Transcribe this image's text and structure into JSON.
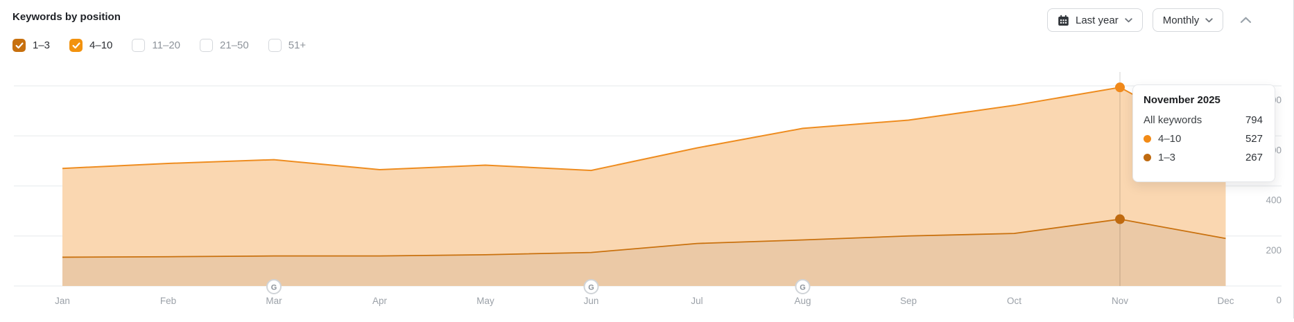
{
  "header": {
    "title": "Keywords by position"
  },
  "controls": {
    "date_range_label": "Last year",
    "granularity_label": "Monthly",
    "icons": [
      "calendar-icon",
      "chevron-down-icon",
      "chevron-up-icon"
    ]
  },
  "filters": [
    {
      "label": "1–3",
      "checked": true,
      "color": "#c7700e"
    },
    {
      "label": "4–10",
      "checked": true,
      "color": "#f2920e"
    },
    {
      "label": "11–20",
      "checked": false,
      "color": null
    },
    {
      "label": "21–50",
      "checked": false,
      "color": null
    },
    {
      "label": "51+",
      "checked": false,
      "color": null
    }
  ],
  "tooltip": {
    "title": "November 2025",
    "rows": [
      {
        "label": "All keywords",
        "value": "794",
        "dot": null
      },
      {
        "label": "4–10",
        "value": "527",
        "dot": "#f28b17"
      },
      {
        "label": "1–3",
        "value": "267",
        "dot": "#bf6a10"
      }
    ]
  },
  "chart_data": {
    "type": "area",
    "stacked": true,
    "title": "Keywords by position",
    "x_labels": [
      "Jan",
      "Feb",
      "Mar",
      "Apr",
      "May",
      "Jun",
      "Jul",
      "Aug",
      "Sep",
      "Oct",
      "Nov",
      "Dec"
    ],
    "y_ticks": [
      0,
      200,
      400,
      600,
      800
    ],
    "ylim": [
      0,
      860
    ],
    "grid": true,
    "legend_position": "none",
    "series": [
      {
        "name": "1–3",
        "color": "#c9710e",
        "fill": "#ebc9a6",
        "values": [
          115,
          117,
          120,
          120,
          125,
          134,
          170,
          184,
          200,
          210,
          267,
          190
        ]
      },
      {
        "name": "4–10",
        "color": "#ee8c1f",
        "fill": "#fad7b1",
        "values": [
          355,
          373,
          385,
          345,
          358,
          328,
          382,
          446,
          463,
          512,
          527,
          375
        ]
      }
    ],
    "totals_all_keywords": [
      470,
      490,
      505,
      465,
      483,
      462,
      552,
      630,
      663,
      722,
      794,
      565
    ],
    "google_update_months": [
      "Mar",
      "Jun",
      "Aug"
    ],
    "highlight": {
      "month": "Nov",
      "x_index": 10,
      "all_keywords": 794,
      "values": {
        "4–10": 527,
        "1–3": 267
      }
    },
    "axis_label_color": "#9ba1a8",
    "grid_color": "#eef0f2"
  }
}
